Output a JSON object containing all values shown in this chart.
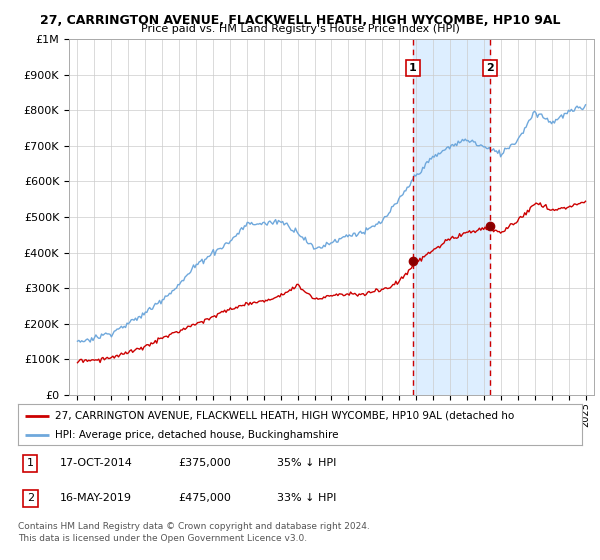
{
  "title1": "27, CARRINGTON AVENUE, FLACKWELL HEATH, HIGH WYCOMBE, HP10 9AL",
  "title2": "Price paid vs. HM Land Registry's House Price Index (HPI)",
  "ylabel_ticks": [
    "£0",
    "£100K",
    "£200K",
    "£300K",
    "£400K",
    "£500K",
    "£600K",
    "£700K",
    "£800K",
    "£900K",
    "£1M"
  ],
  "ytick_vals": [
    0,
    100000,
    200000,
    300000,
    400000,
    500000,
    600000,
    700000,
    800000,
    900000,
    1000000
  ],
  "xlim": [
    1994.5,
    2025.5
  ],
  "ylim": [
    0,
    1000000
  ],
  "hpi_color": "#6fa8dc",
  "price_color": "#cc0000",
  "shade_color": "#ddeeff",
  "vline_color": "#cc0000",
  "transaction1_x": 2014.79,
  "transaction1_y": 375000,
  "transaction2_x": 2019.37,
  "transaction2_y": 475000,
  "marker_color": "#990000",
  "legend_label1": "27, CARRINGTON AVENUE, FLACKWELL HEATH, HIGH WYCOMBE, HP10 9AL (detached ho",
  "legend_label2": "HPI: Average price, detached house, Buckinghamshire",
  "table_data": [
    {
      "num": "1",
      "date": "17-OCT-2014",
      "price": "£375,000",
      "change": "35% ↓ HPI"
    },
    {
      "num": "2",
      "date": "16-MAY-2019",
      "price": "£475,000",
      "change": "33% ↓ HPI"
    }
  ],
  "footer": "Contains HM Land Registry data © Crown copyright and database right 2024.\nThis data is licensed under the Open Government Licence v3.0.",
  "bg_color": "#ffffff",
  "grid_color": "#cccccc",
  "hpi_ctrl_x": [
    1995,
    1996,
    1997,
    1998,
    1999,
    2000,
    2001,
    2002,
    2003,
    2004,
    2005,
    2006,
    2007,
    2008,
    2009,
    2010,
    2011,
    2012,
    2013,
    2014,
    2015,
    2016,
    2017,
    2018,
    2019,
    2020,
    2021,
    2022,
    2023,
    2024,
    2025
  ],
  "hpi_ctrl_y": [
    148000,
    160000,
    175000,
    200000,
    230000,
    270000,
    310000,
    365000,
    400000,
    430000,
    480000,
    480000,
    490000,
    460000,
    410000,
    430000,
    450000,
    460000,
    490000,
    550000,
    620000,
    670000,
    700000,
    720000,
    700000,
    680000,
    720000,
    800000,
    770000,
    800000,
    815000
  ],
  "price_ctrl_x": [
    1995,
    1996,
    1997,
    1998,
    1999,
    2000,
    2001,
    2002,
    2003,
    2004,
    2005,
    2006,
    2007,
    2008,
    2009,
    2010,
    2011,
    2012,
    2013,
    2014,
    2015,
    2016,
    2017,
    2018,
    2019,
    2020,
    2021,
    2022,
    2023,
    2024,
    2025
  ],
  "price_ctrl_y": [
    95000,
    98000,
    105000,
    118000,
    135000,
    158000,
    180000,
    200000,
    220000,
    240000,
    255000,
    265000,
    280000,
    310000,
    270000,
    280000,
    285000,
    285000,
    295000,
    320000,
    375000,
    410000,
    440000,
    460000,
    470000,
    460000,
    490000,
    540000,
    520000,
    530000,
    545000
  ]
}
